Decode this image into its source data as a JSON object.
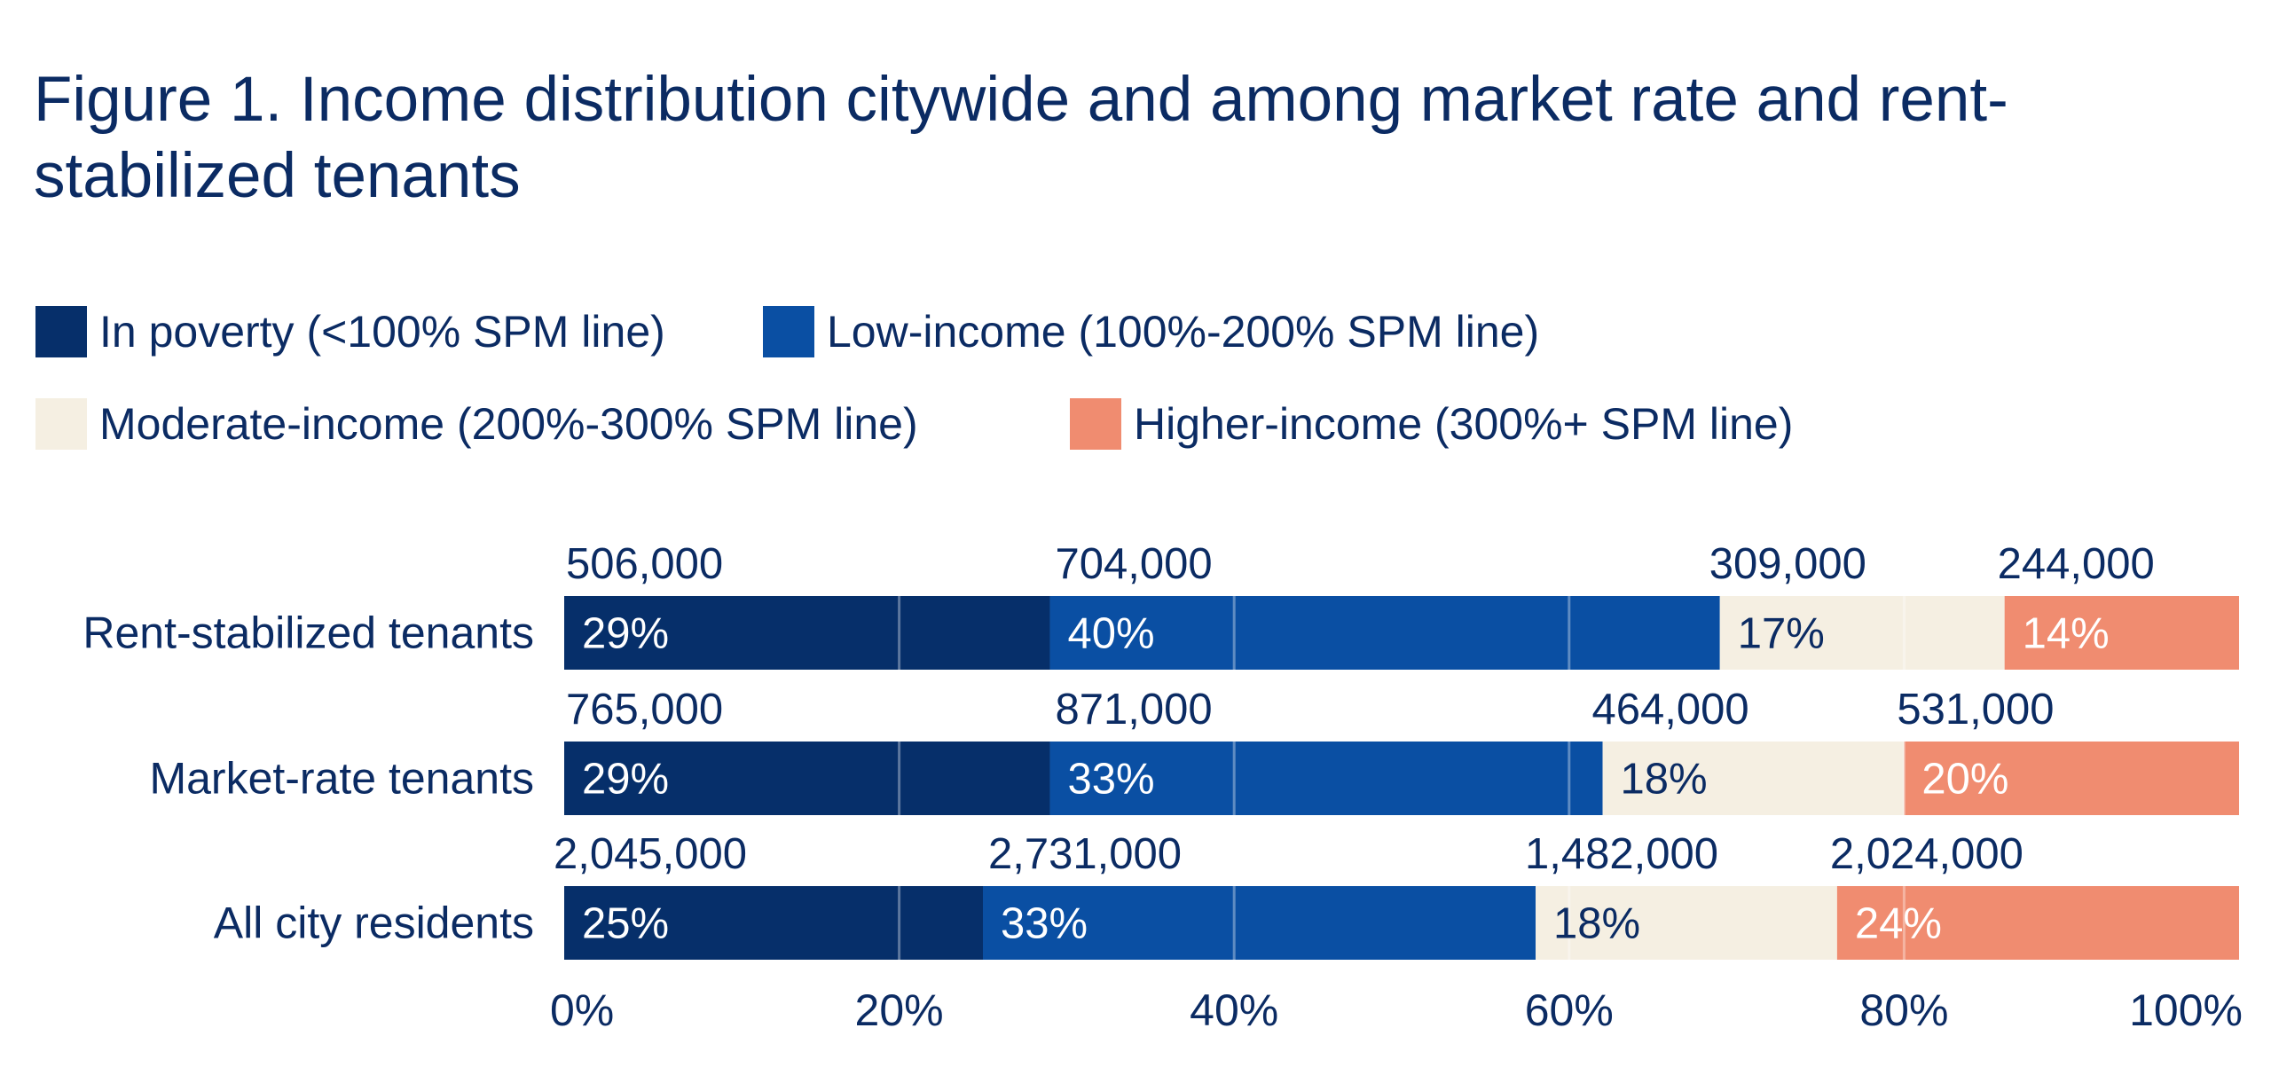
{
  "title": "Figure 1. Income distribution citywide and among market rate and rent-stabilized tenants",
  "legend": [
    {
      "label": "In poverty (<100% SPM line)",
      "color": "#062f6a"
    },
    {
      "label": "Low-income (100%-200% SPM line)",
      "color": "#0a4fa3"
    },
    {
      "label": "Moderate-income (200%-300% SPM line)",
      "color": "#f5efe2"
    },
    {
      "label": "Higher-income (300%+ SPM line)",
      "color": "#f08c70"
    }
  ],
  "chart_data": {
    "type": "bar",
    "orientation": "horizontal",
    "stacked": true,
    "categories": [
      "Rent-stabilized tenants",
      "Market-rate tenants",
      "All city residents"
    ],
    "series": [
      {
        "name": "In poverty (<100% SPM line)",
        "color": "#062f6a",
        "label_color": "#ffffff",
        "values": [
          29,
          29,
          25
        ],
        "percent_labels": [
          "29%",
          "29%",
          "25%"
        ],
        "count_labels": [
          "506,000",
          "765,000",
          "2,045,000"
        ]
      },
      {
        "name": "Low-income (100%-200% SPM line)",
        "color": "#0a4fa3",
        "label_color": "#ffffff",
        "values": [
          40,
          33,
          33
        ],
        "percent_labels": [
          "40%",
          "33%",
          "33%"
        ],
        "count_labels": [
          "704,000",
          "871,000",
          "2,731,000"
        ]
      },
      {
        "name": "Moderate-income (200%-300% SPM line)",
        "color": "#f5efe2",
        "label_color": "#0b2b63",
        "values": [
          17,
          18,
          18
        ],
        "percent_labels": [
          "17%",
          "18%",
          "18%"
        ],
        "count_labels": [
          "309,000",
          "464,000",
          "1,482,000"
        ]
      },
      {
        "name": "Higher-income (300%+ SPM line)",
        "color": "#f08c70",
        "label_color": "#ffffff",
        "values": [
          14,
          20,
          24
        ],
        "percent_labels": [
          "14%",
          "20%",
          "24%"
        ],
        "count_labels": [
          "244,000",
          "531,000",
          "2,024,000"
        ]
      }
    ],
    "xlim": [
      0,
      100
    ],
    "xticks": [
      0,
      20,
      40,
      60,
      80,
      100
    ],
    "xtick_labels": [
      "0%",
      "20%",
      "40%",
      "60%",
      "80%",
      "100%"
    ],
    "grid": true,
    "legend_position": "top-left",
    "text_color": "#0b2b63",
    "grid_color": "#ffffff"
  }
}
